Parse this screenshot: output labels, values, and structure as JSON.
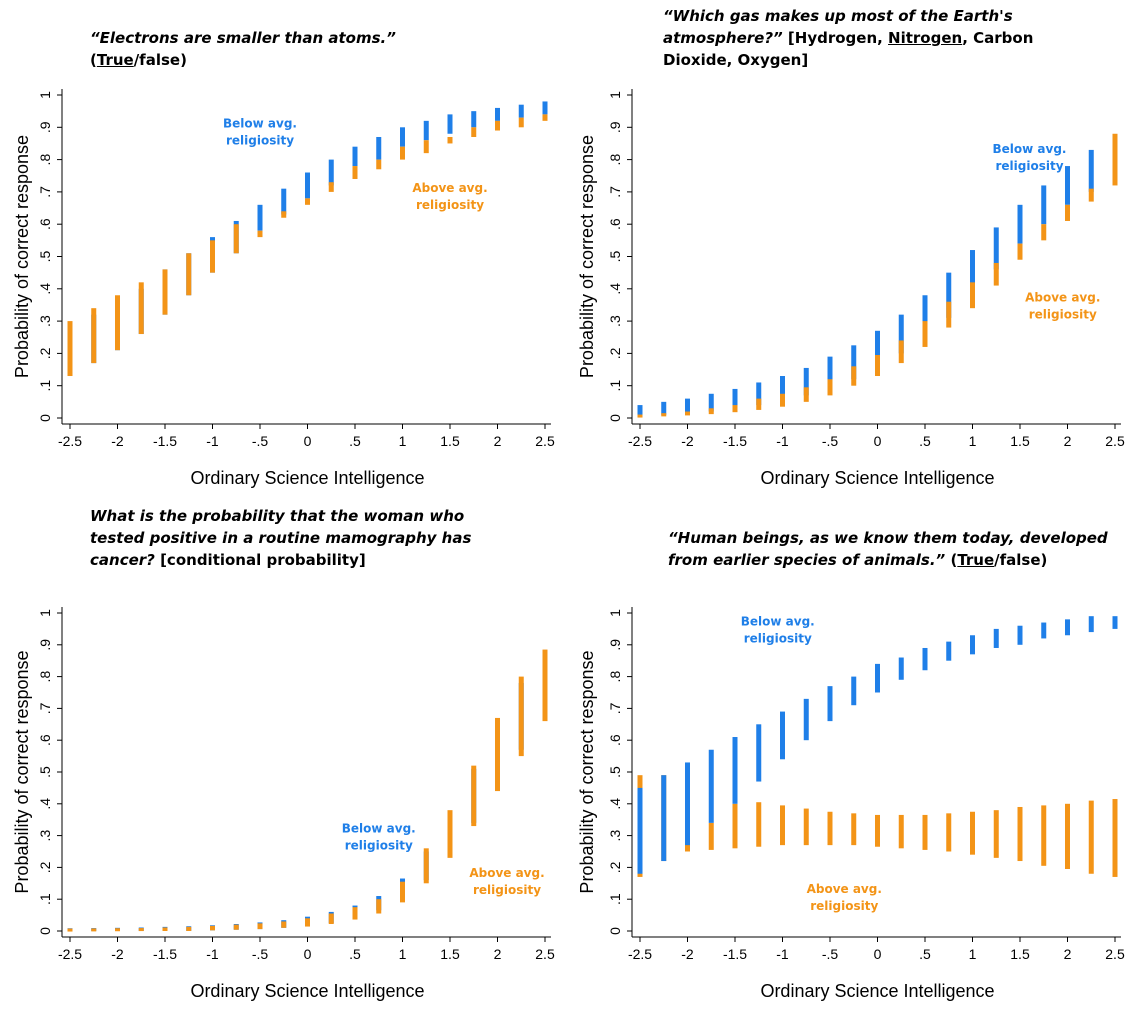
{
  "colors": {
    "below": "#1f7fe8",
    "above": "#f39417",
    "axis": "#000000"
  },
  "chart_data": [
    {
      "type": "range-bar",
      "title_parts": [
        {
          "text": "“Electrons are smaller than atoms.”",
          "style": "q"
        },
        {
          "text": "(",
          "style": "n",
          "newline": true
        },
        {
          "text": "True",
          "style": "u"
        },
        {
          "text": "/false)",
          "style": "n"
        }
      ],
      "xlabel": "Ordinary Science Intelligence",
      "ylabel": "Probability of correct response",
      "xlim": [
        -2.5,
        2.5
      ],
      "ylim": [
        0,
        1
      ],
      "xticks": [
        "-2.5",
        "-2",
        "-1.5",
        "-1",
        "-.5",
        "0",
        ".5",
        "1",
        "1.5",
        "2",
        "2.5"
      ],
      "yticks": [
        "0",
        ".1",
        ".2",
        ".3",
        ".4",
        ".5",
        ".6",
        ".7",
        ".8",
        ".9",
        "1"
      ],
      "x": [
        -2.5,
        -2.25,
        -2,
        -1.75,
        -1.5,
        -1.25,
        -1,
        -0.75,
        -0.5,
        -0.25,
        0,
        0.25,
        0.5,
        0.75,
        1,
        1.25,
        1.5,
        1.75,
        2,
        2.25,
        2.5
      ],
      "series": [
        {
          "name": "Below avg. religiosity",
          "color_key": "below",
          "low": [
            0.14,
            0.17,
            0.21,
            0.26,
            0.32,
            0.38,
            0.45,
            0.51,
            0.58,
            0.63,
            0.68,
            0.72,
            0.78,
            0.8,
            0.84,
            0.86,
            0.88,
            0.9,
            0.92,
            0.93,
            0.94
          ],
          "high": [
            0.28,
            0.32,
            0.36,
            0.4,
            0.46,
            0.51,
            0.56,
            0.61,
            0.66,
            0.71,
            0.76,
            0.8,
            0.84,
            0.87,
            0.9,
            0.92,
            0.94,
            0.95,
            0.96,
            0.97,
            0.98
          ]
        },
        {
          "name": "Above avg. religiosity",
          "color_key": "above",
          "low": [
            0.13,
            0.17,
            0.21,
            0.26,
            0.32,
            0.38,
            0.45,
            0.51,
            0.56,
            0.62,
            0.66,
            0.7,
            0.74,
            0.77,
            0.8,
            0.82,
            0.85,
            0.87,
            0.89,
            0.9,
            0.92
          ],
          "high": [
            0.3,
            0.34,
            0.38,
            0.42,
            0.46,
            0.51,
            0.55,
            0.6,
            0.58,
            0.64,
            0.68,
            0.73,
            0.78,
            0.8,
            0.84,
            0.86,
            0.87,
            0.9,
            0.92,
            0.93,
            0.94
          ]
        }
      ],
      "labels": [
        {
          "text1": "Below avg.",
          "text2": "religiosity",
          "color_key": "below",
          "at": [
            -0.5,
            0.9
          ]
        },
        {
          "text1": "Above avg.",
          "text2": "religiosity",
          "color_key": "above",
          "at": [
            1.5,
            0.7
          ]
        }
      ]
    },
    {
      "type": "range-bar",
      "title_parts": [
        {
          "text": "“Which gas makes up most of the Earth's",
          "style": "q"
        },
        {
          "text": "atmosphere?”",
          "style": "q",
          "newline": true
        },
        {
          "text": " [Hydrogen, ",
          "style": "n"
        },
        {
          "text": "Nitrogen",
          "style": "u"
        },
        {
          "text": ", Carbon",
          "style": "n"
        },
        {
          "text": "Dioxide, Oxygen]",
          "style": "n",
          "newline": true
        }
      ],
      "xlabel": "Ordinary Science Intelligence",
      "ylabel": "Probability of correct response",
      "xlim": [
        -2.5,
        2.5
      ],
      "ylim": [
        0,
        1
      ],
      "xticks": [
        "-2.5",
        "-2",
        "-1.5",
        "-1",
        "-.5",
        "0",
        ".5",
        "1",
        "1.5",
        "2",
        "2.5"
      ],
      "yticks": [
        "0",
        ".1",
        ".2",
        ".3",
        ".4",
        ".5",
        ".6",
        ".7",
        ".8",
        ".9",
        "1"
      ],
      "x": [
        -2.5,
        -2.25,
        -2,
        -1.75,
        -1.5,
        -1.25,
        -1,
        -0.75,
        -0.5,
        -0.25,
        0,
        0.25,
        0.5,
        0.75,
        1,
        1.25,
        1.5,
        1.75,
        2,
        2.25,
        2.5
      ],
      "series": [
        {
          "name": "Below avg. religiosity",
          "color_key": "below",
          "low": [
            0.005,
            0.01,
            0.015,
            0.02,
            0.03,
            0.04,
            0.05,
            0.07,
            0.09,
            0.12,
            0.16,
            0.2,
            0.25,
            0.31,
            0.38,
            0.46,
            0.54,
            0.6,
            0.66,
            0.7,
            0.74
          ],
          "high": [
            0.04,
            0.05,
            0.06,
            0.075,
            0.09,
            0.11,
            0.13,
            0.155,
            0.19,
            0.225,
            0.27,
            0.32,
            0.38,
            0.45,
            0.52,
            0.59,
            0.66,
            0.72,
            0.78,
            0.83,
            0.87
          ]
        },
        {
          "name": "Above avg. religiosity",
          "color_key": "above",
          "low": [
            0.002,
            0.005,
            0.008,
            0.012,
            0.018,
            0.025,
            0.035,
            0.05,
            0.07,
            0.1,
            0.13,
            0.17,
            0.22,
            0.28,
            0.34,
            0.41,
            0.49,
            0.55,
            0.61,
            0.67,
            0.72
          ],
          "high": [
            0.01,
            0.015,
            0.02,
            0.03,
            0.04,
            0.06,
            0.075,
            0.095,
            0.12,
            0.16,
            0.195,
            0.24,
            0.3,
            0.36,
            0.42,
            0.48,
            0.54,
            0.6,
            0.66,
            0.71,
            0.88
          ]
        }
      ],
      "labels": [
        {
          "text1": "Below avg.",
          "text2": "religiosity",
          "color_key": "below",
          "at": [
            1.6,
            0.82
          ]
        },
        {
          "text1": "Above avg.",
          "text2": "religiosity",
          "color_key": "above",
          "at": [
            1.95,
            0.36
          ]
        }
      ]
    },
    {
      "type": "range-bar",
      "title_parts": [
        {
          "text": "What is the probability that the woman who",
          "style": "q"
        },
        {
          "text": "tested positive in a routine mamography has",
          "style": "q",
          "newline": true
        },
        {
          "text": "cancer?",
          "style": "q",
          "newline": true
        },
        {
          "text": " [conditional probability]",
          "style": "n"
        }
      ],
      "xlabel": "Ordinary Science Intelligence",
      "ylabel": "Probability of correct response",
      "xlim": [
        -2.5,
        2.5
      ],
      "ylim": [
        0,
        1
      ],
      "xticks": [
        "-2.5",
        "-2",
        "-1.5",
        "-1",
        "-.5",
        "0",
        ".5",
        "1",
        "1.5",
        "2",
        "2.5"
      ],
      "yticks": [
        "0",
        ".1",
        ".2",
        ".3",
        ".4",
        ".5",
        ".6",
        ".7",
        ".8",
        ".9",
        "1"
      ],
      "x": [
        -2.5,
        -2.25,
        -2,
        -1.75,
        -1.5,
        -1.25,
        -1,
        -0.75,
        -0.5,
        -0.25,
        0,
        0.25,
        0.5,
        0.75,
        1,
        1.25,
        1.5,
        1.75,
        2,
        2.25,
        2.5
      ],
      "series": [
        {
          "name": "Below avg. religiosity",
          "color_key": "below",
          "low": [
            0.0,
            0.0,
            0.0,
            0.0,
            0.0,
            0.0,
            0.002,
            0.004,
            0.006,
            0.01,
            0.015,
            0.025,
            0.04,
            0.065,
            0.1,
            0.16,
            0.24,
            0.34,
            0.46,
            0.57,
            0.67
          ],
          "high": [
            0.008,
            0.009,
            0.01,
            0.011,
            0.013,
            0.015,
            0.018,
            0.022,
            0.027,
            0.034,
            0.045,
            0.06,
            0.08,
            0.11,
            0.165,
            0.25,
            0.36,
            0.51,
            0.65,
            0.78,
            0.87
          ]
        },
        {
          "name": "Above avg. religiosity",
          "color_key": "above",
          "low": [
            0.0,
            0.0,
            0.0,
            0.0,
            0.0,
            0.0,
            0.002,
            0.004,
            0.006,
            0.01,
            0.014,
            0.022,
            0.036,
            0.055,
            0.09,
            0.15,
            0.23,
            0.33,
            0.44,
            0.55,
            0.66
          ],
          "high": [
            0.006,
            0.007,
            0.008,
            0.009,
            0.011,
            0.013,
            0.016,
            0.02,
            0.024,
            0.03,
            0.04,
            0.055,
            0.075,
            0.1,
            0.155,
            0.26,
            0.38,
            0.52,
            0.67,
            0.8,
            0.885
          ]
        }
      ],
      "labels": [
        {
          "text1": "Below avg.",
          "text2": "religiosity",
          "color_key": "below",
          "at": [
            0.75,
            0.31
          ]
        },
        {
          "text1": "Above avg.",
          "text2": "religiosity",
          "color_key": "above",
          "at": [
            2.1,
            0.17
          ]
        }
      ]
    },
    {
      "type": "range-bar",
      "title_parts": [
        {
          "text": "“Human beings, as we know them today, developed",
          "style": "q"
        },
        {
          "text": "from earlier species of animals.”",
          "style": "q",
          "newline": true
        },
        {
          "text": " (",
          "style": "n"
        },
        {
          "text": "True",
          "style": "u"
        },
        {
          "text": "/false)",
          "style": "n"
        }
      ],
      "xlabel": "Ordinary Science Intelligence",
      "ylabel": "Probability of correct response",
      "xlim": [
        -2.5,
        2.5
      ],
      "ylim": [
        0,
        1
      ],
      "xticks": [
        "-2.5",
        "-2",
        "-1.5",
        "-1",
        "-.5",
        "0",
        ".5",
        "1",
        "1.5",
        "2",
        "2.5"
      ],
      "yticks": [
        "0",
        ".1",
        ".2",
        ".3",
        ".4",
        ".5",
        ".6",
        ".7",
        ".8",
        ".9",
        "1"
      ],
      "x": [
        -2.5,
        -2.25,
        -2,
        -1.75,
        -1.5,
        -1.25,
        -1,
        -0.75,
        -0.5,
        -0.25,
        0,
        0.25,
        0.5,
        0.75,
        1,
        1.25,
        1.5,
        1.75,
        2,
        2.25,
        2.5
      ],
      "series": [
        {
          "name": "Above avg. religiosity",
          "color_key": "above",
          "low": [
            0.17,
            0.22,
            0.25,
            0.255,
            0.26,
            0.265,
            0.27,
            0.27,
            0.27,
            0.27,
            0.265,
            0.26,
            0.255,
            0.25,
            0.24,
            0.23,
            0.22,
            0.205,
            0.195,
            0.18,
            0.17
          ],
          "high": [
            0.49,
            0.49,
            0.29,
            0.34,
            0.4,
            0.405,
            0.395,
            0.385,
            0.375,
            0.37,
            0.365,
            0.365,
            0.365,
            0.37,
            0.375,
            0.38,
            0.39,
            0.395,
            0.4,
            0.41,
            0.415
          ]
        },
        {
          "name": "Below avg. religiosity",
          "color_key": "below",
          "low": [
            0.18,
            0.22,
            0.27,
            0.34,
            0.4,
            0.47,
            0.54,
            0.6,
            0.66,
            0.71,
            0.75,
            0.79,
            0.82,
            0.85,
            0.87,
            0.89,
            0.9,
            0.92,
            0.93,
            0.94,
            0.95
          ],
          "high": [
            0.45,
            0.49,
            0.53,
            0.57,
            0.61,
            0.65,
            0.69,
            0.73,
            0.77,
            0.8,
            0.84,
            0.86,
            0.89,
            0.91,
            0.93,
            0.95,
            0.96,
            0.97,
            0.98,
            0.99,
            0.99
          ]
        }
      ],
      "labels": [
        {
          "text1": "Below avg.",
          "text2": "religiosity",
          "color_key": "below",
          "at": [
            -1.05,
            0.96
          ]
        },
        {
          "text1": "Above avg.",
          "text2": "religiosity",
          "color_key": "above",
          "at": [
            -0.35,
            0.12
          ]
        }
      ]
    }
  ]
}
